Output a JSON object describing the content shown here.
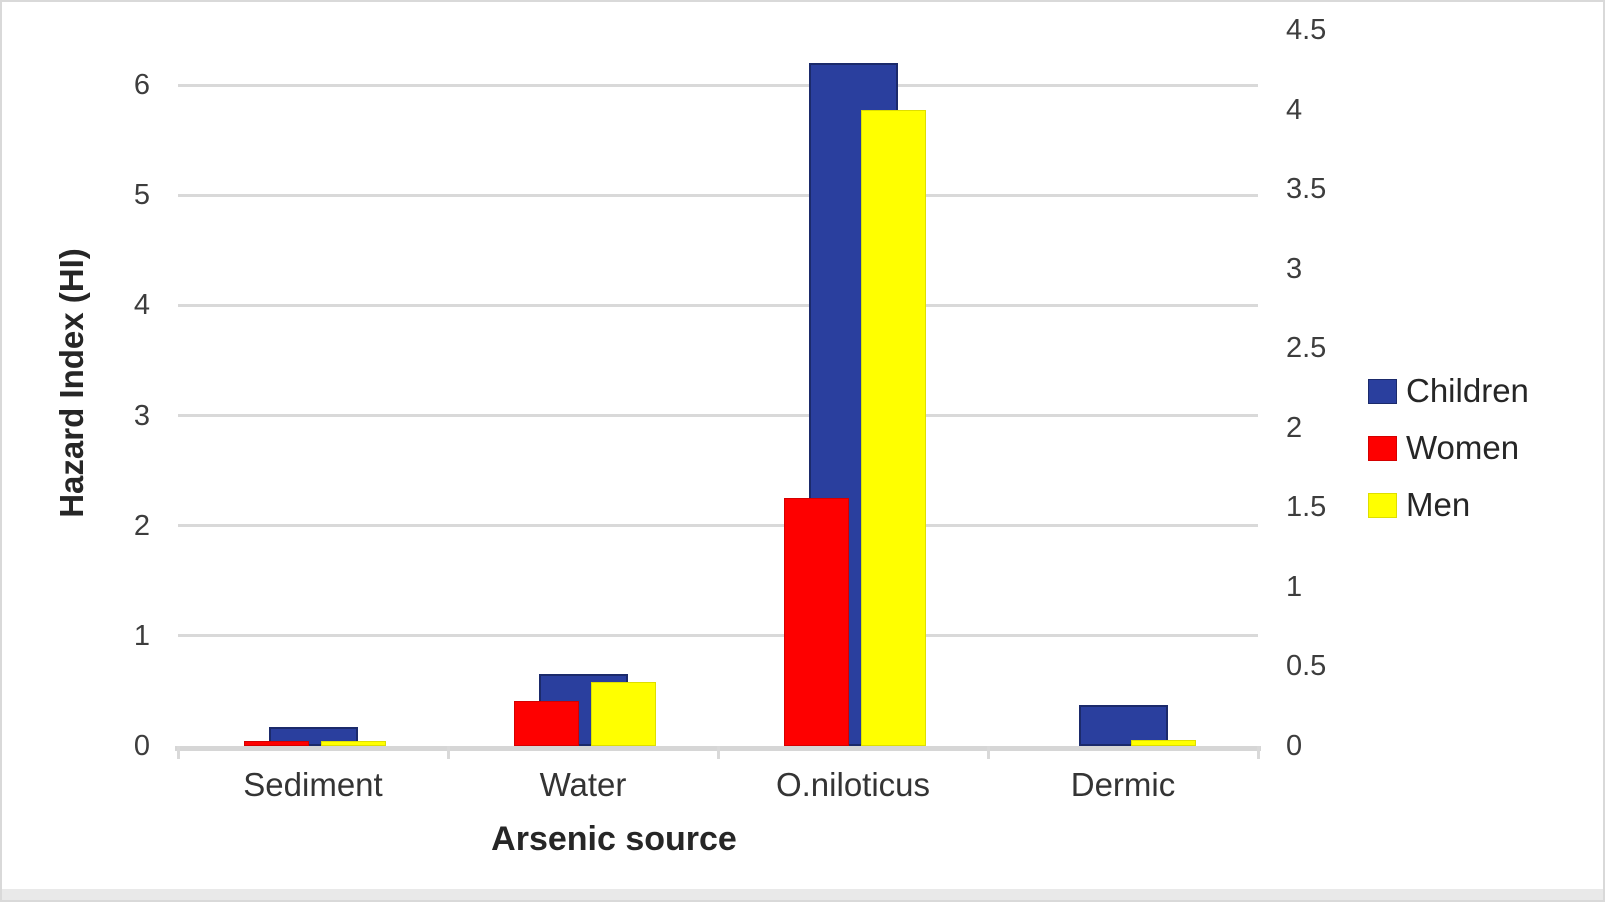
{
  "chart_data": {
    "type": "bar",
    "categories": [
      "Sediment",
      "Water",
      "O.niloticus",
      "Dermic"
    ],
    "series": [
      {
        "name": "Children",
        "axis": "left",
        "color": "#2a3f9e",
        "border_color": "#1b2a6b",
        "values": [
          0.17,
          0.65,
          6.2,
          0.37
        ]
      },
      {
        "name": "Women",
        "axis": "right",
        "color": "#fe0000",
        "border_color": "#d40000",
        "values": [
          0.03,
          0.28,
          1.56,
          0
        ]
      },
      {
        "name": "Men",
        "axis": "right",
        "color": "#ffff00",
        "border_color": "#dede00",
        "values": [
          0.03,
          0.4,
          4.0,
          0.04
        ]
      }
    ],
    "xlabel": "Arsenic source",
    "ylabel": "Hazard Index (HI)",
    "left_axis": {
      "min": 0,
      "max": 6.5,
      "ticks": [
        0,
        1,
        2,
        3,
        4,
        5,
        6
      ]
    },
    "right_axis": {
      "min": 0,
      "max": 4.5,
      "ticks": [
        0,
        0.5,
        1,
        1.5,
        2,
        2.5,
        3,
        3.5,
        4,
        4.5
      ]
    },
    "grid": "horizontal",
    "gridline_color": "#d9d9d9",
    "axis_line_color": "#d6d6d6",
    "legend_position": "right",
    "legend": [
      "Children",
      "Women",
      "Men"
    ]
  }
}
